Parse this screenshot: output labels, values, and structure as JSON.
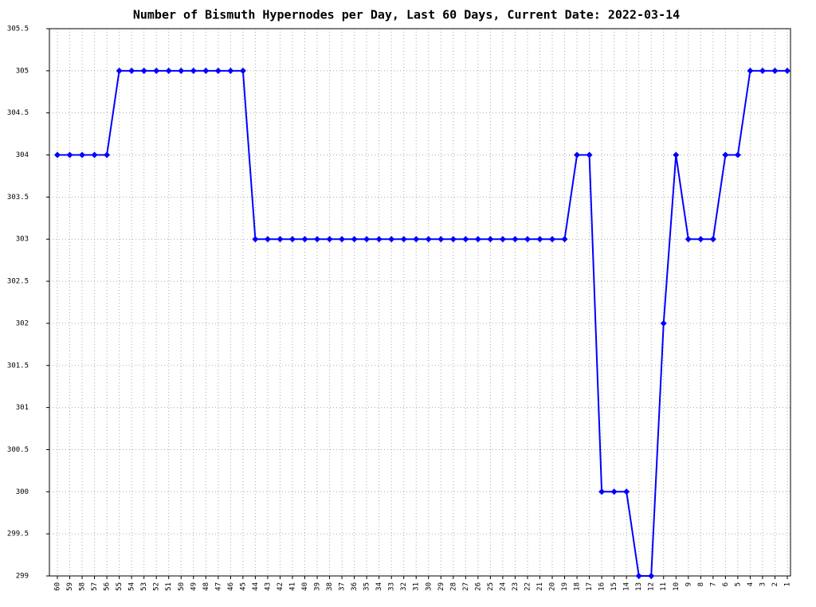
{
  "chart_data": {
    "type": "line",
    "title": "Number of Bismuth Hypernodes per Day, Last 60 Days, Current Date: 2022-03-14",
    "categories": [
      "60",
      "59",
      "58",
      "57",
      "56",
      "55",
      "54",
      "53",
      "52",
      "51",
      "50",
      "49",
      "48",
      "47",
      "46",
      "45",
      "44",
      "43",
      "42",
      "41",
      "40",
      "39",
      "38",
      "37",
      "36",
      "35",
      "34",
      "33",
      "32",
      "31",
      "30",
      "29",
      "28",
      "27",
      "26",
      "25",
      "24",
      "23",
      "22",
      "21",
      "20",
      "19",
      "18",
      "17",
      "16",
      "15",
      "14",
      "13",
      "12",
      "11",
      "10",
      "9",
      "8",
      "7",
      "6",
      "5",
      "4",
      "3",
      "2",
      "1"
    ],
    "series": [
      {
        "name": "Hypernodes",
        "color": "#0000ff",
        "values": [
          304,
          304,
          304,
          304,
          304,
          305,
          305,
          305,
          305,
          305,
          305,
          305,
          305,
          305,
          305,
          305,
          303,
          303,
          303,
          303,
          303,
          303,
          303,
          303,
          303,
          303,
          303,
          303,
          303,
          303,
          303,
          303,
          303,
          303,
          303,
          303,
          303,
          303,
          303,
          303,
          303,
          303,
          304,
          304,
          300,
          300,
          300,
          299,
          299,
          302,
          304,
          303,
          303,
          303,
          304,
          304,
          305,
          305,
          305,
          305
        ]
      }
    ],
    "ylim": [
      299,
      305.5
    ],
    "yticks": [
      299,
      299.5,
      300,
      300.5,
      301,
      301.5,
      302,
      302.5,
      303,
      303.5,
      304,
      304.5,
      305,
      305.5
    ],
    "grid": true
  }
}
